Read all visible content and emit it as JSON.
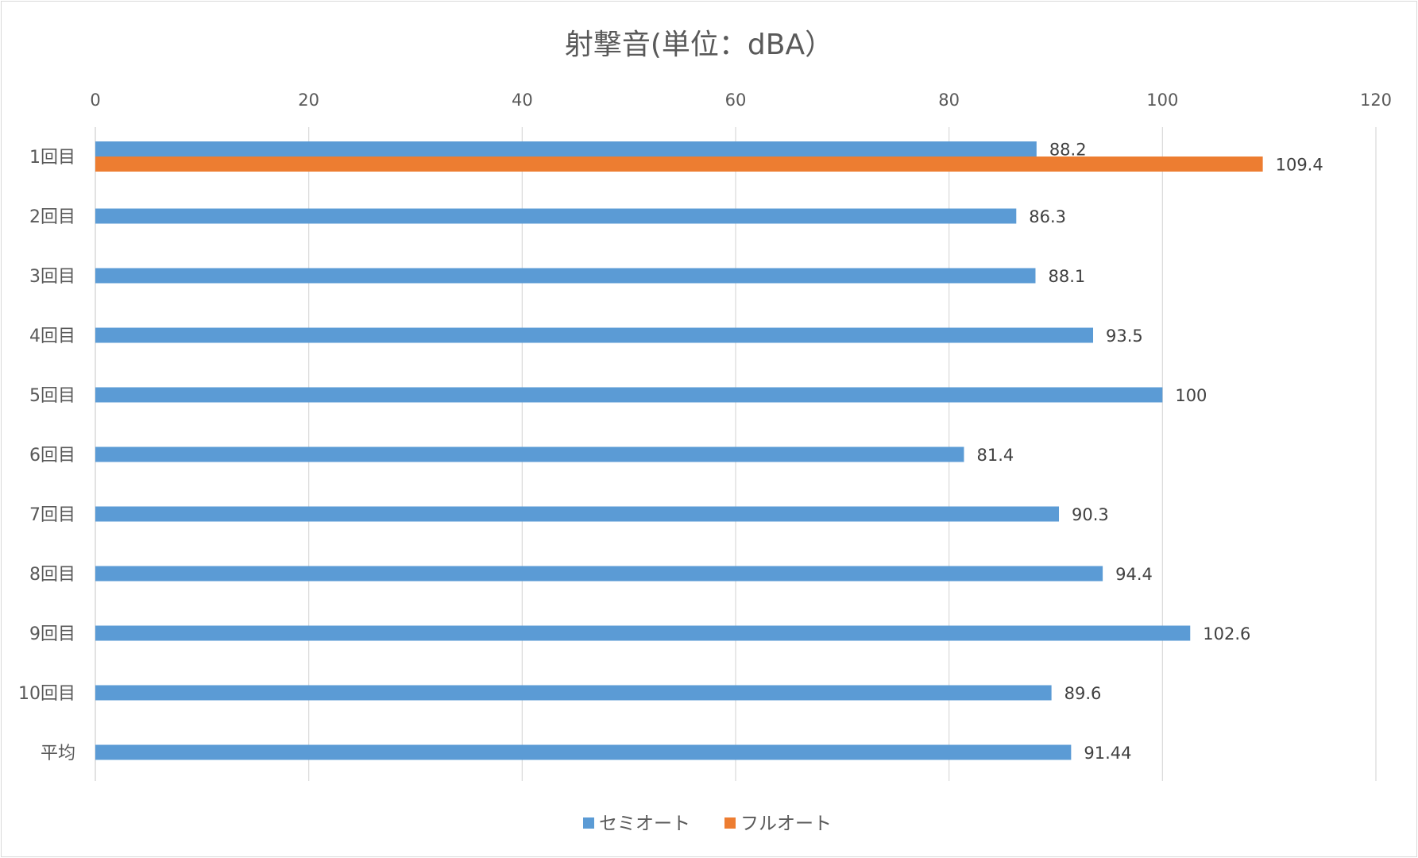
{
  "chart_data": {
    "type": "bar",
    "orientation": "horizontal",
    "title": "射撃音(単位：dBA）",
    "categories": [
      "1回目",
      "2回目",
      "3回目",
      "4回目",
      "5回目",
      "6回目",
      "7回目",
      "8回目",
      "9回目",
      "10回目",
      "平均"
    ],
    "series": [
      {
        "name": "セミオート",
        "color": "#5b9bd5",
        "values": [
          88.2,
          86.3,
          88.1,
          93.5,
          100,
          81.4,
          90.3,
          94.4,
          102.6,
          89.6,
          91.44
        ],
        "labels": [
          "88.2",
          "86.3",
          "88.1",
          "93.5",
          "100",
          "81.4",
          "90.3",
          "94.4",
          "102.6",
          "89.6",
          "91.44"
        ]
      },
      {
        "name": "フルオート",
        "color": "#ed7d31",
        "values": [
          109.4,
          null,
          null,
          null,
          null,
          null,
          null,
          null,
          null,
          null,
          null
        ],
        "labels": [
          "109.4",
          null,
          null,
          null,
          null,
          null,
          null,
          null,
          null,
          null,
          null
        ]
      }
    ],
    "xlim": [
      0,
      120
    ],
    "xticks": [
      0,
      20,
      40,
      60,
      80,
      100,
      120
    ],
    "xtick_labels": [
      "0",
      "20",
      "40",
      "60",
      "80",
      "100",
      "120"
    ],
    "xaxis_position": "top",
    "grid": true,
    "legend": "bottom",
    "xlabel": "",
    "ylabel": ""
  }
}
